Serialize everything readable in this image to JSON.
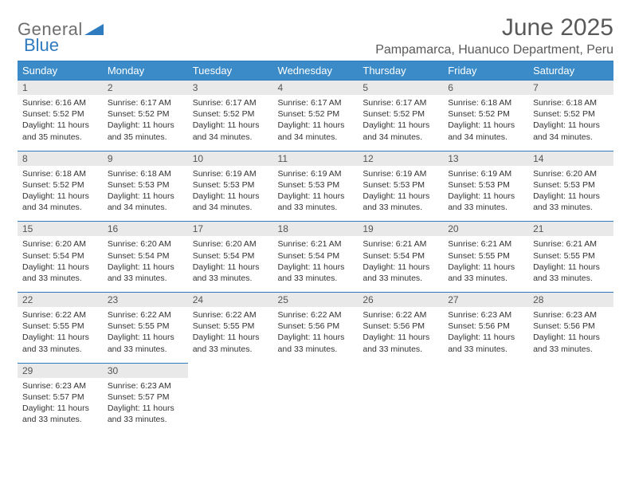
{
  "brand": {
    "word1": "General",
    "word2": "Blue",
    "color_gray": "#6e6e6e",
    "color_blue": "#2f7bbf"
  },
  "title": "June 2025",
  "subtitle": "Pampamarca, Huanuco Department, Peru",
  "header_bg": "#3b8bc9",
  "header_fg": "#ffffff",
  "daynum_bg": "#e9e9e9",
  "rule_color": "#2f7bbf",
  "weekdays": [
    "Sunday",
    "Monday",
    "Tuesday",
    "Wednesday",
    "Thursday",
    "Friday",
    "Saturday"
  ],
  "weeks": [
    [
      {
        "n": "1",
        "sr": "6:16 AM",
        "ss": "5:52 PM",
        "dl": "11 hours and 35 minutes."
      },
      {
        "n": "2",
        "sr": "6:17 AM",
        "ss": "5:52 PM",
        "dl": "11 hours and 35 minutes."
      },
      {
        "n": "3",
        "sr": "6:17 AM",
        "ss": "5:52 PM",
        "dl": "11 hours and 34 minutes."
      },
      {
        "n": "4",
        "sr": "6:17 AM",
        "ss": "5:52 PM",
        "dl": "11 hours and 34 minutes."
      },
      {
        "n": "5",
        "sr": "6:17 AM",
        "ss": "5:52 PM",
        "dl": "11 hours and 34 minutes."
      },
      {
        "n": "6",
        "sr": "6:18 AM",
        "ss": "5:52 PM",
        "dl": "11 hours and 34 minutes."
      },
      {
        "n": "7",
        "sr": "6:18 AM",
        "ss": "5:52 PM",
        "dl": "11 hours and 34 minutes."
      }
    ],
    [
      {
        "n": "8",
        "sr": "6:18 AM",
        "ss": "5:52 PM",
        "dl": "11 hours and 34 minutes."
      },
      {
        "n": "9",
        "sr": "6:18 AM",
        "ss": "5:53 PM",
        "dl": "11 hours and 34 minutes."
      },
      {
        "n": "10",
        "sr": "6:19 AM",
        "ss": "5:53 PM",
        "dl": "11 hours and 34 minutes."
      },
      {
        "n": "11",
        "sr": "6:19 AM",
        "ss": "5:53 PM",
        "dl": "11 hours and 33 minutes."
      },
      {
        "n": "12",
        "sr": "6:19 AM",
        "ss": "5:53 PM",
        "dl": "11 hours and 33 minutes."
      },
      {
        "n": "13",
        "sr": "6:19 AM",
        "ss": "5:53 PM",
        "dl": "11 hours and 33 minutes."
      },
      {
        "n": "14",
        "sr": "6:20 AM",
        "ss": "5:53 PM",
        "dl": "11 hours and 33 minutes."
      }
    ],
    [
      {
        "n": "15",
        "sr": "6:20 AM",
        "ss": "5:54 PM",
        "dl": "11 hours and 33 minutes."
      },
      {
        "n": "16",
        "sr": "6:20 AM",
        "ss": "5:54 PM",
        "dl": "11 hours and 33 minutes."
      },
      {
        "n": "17",
        "sr": "6:20 AM",
        "ss": "5:54 PM",
        "dl": "11 hours and 33 minutes."
      },
      {
        "n": "18",
        "sr": "6:21 AM",
        "ss": "5:54 PM",
        "dl": "11 hours and 33 minutes."
      },
      {
        "n": "19",
        "sr": "6:21 AM",
        "ss": "5:54 PM",
        "dl": "11 hours and 33 minutes."
      },
      {
        "n": "20",
        "sr": "6:21 AM",
        "ss": "5:55 PM",
        "dl": "11 hours and 33 minutes."
      },
      {
        "n": "21",
        "sr": "6:21 AM",
        "ss": "5:55 PM",
        "dl": "11 hours and 33 minutes."
      }
    ],
    [
      {
        "n": "22",
        "sr": "6:22 AM",
        "ss": "5:55 PM",
        "dl": "11 hours and 33 minutes."
      },
      {
        "n": "23",
        "sr": "6:22 AM",
        "ss": "5:55 PM",
        "dl": "11 hours and 33 minutes."
      },
      {
        "n": "24",
        "sr": "6:22 AM",
        "ss": "5:55 PM",
        "dl": "11 hours and 33 minutes."
      },
      {
        "n": "25",
        "sr": "6:22 AM",
        "ss": "5:56 PM",
        "dl": "11 hours and 33 minutes."
      },
      {
        "n": "26",
        "sr": "6:22 AM",
        "ss": "5:56 PM",
        "dl": "11 hours and 33 minutes."
      },
      {
        "n": "27",
        "sr": "6:23 AM",
        "ss": "5:56 PM",
        "dl": "11 hours and 33 minutes."
      },
      {
        "n": "28",
        "sr": "6:23 AM",
        "ss": "5:56 PM",
        "dl": "11 hours and 33 minutes."
      }
    ],
    [
      {
        "n": "29",
        "sr": "6:23 AM",
        "ss": "5:57 PM",
        "dl": "11 hours and 33 minutes."
      },
      {
        "n": "30",
        "sr": "6:23 AM",
        "ss": "5:57 PM",
        "dl": "11 hours and 33 minutes."
      },
      null,
      null,
      null,
      null,
      null
    ]
  ],
  "labels": {
    "sunrise": "Sunrise: ",
    "sunset": "Sunset: ",
    "daylight": "Daylight: "
  }
}
